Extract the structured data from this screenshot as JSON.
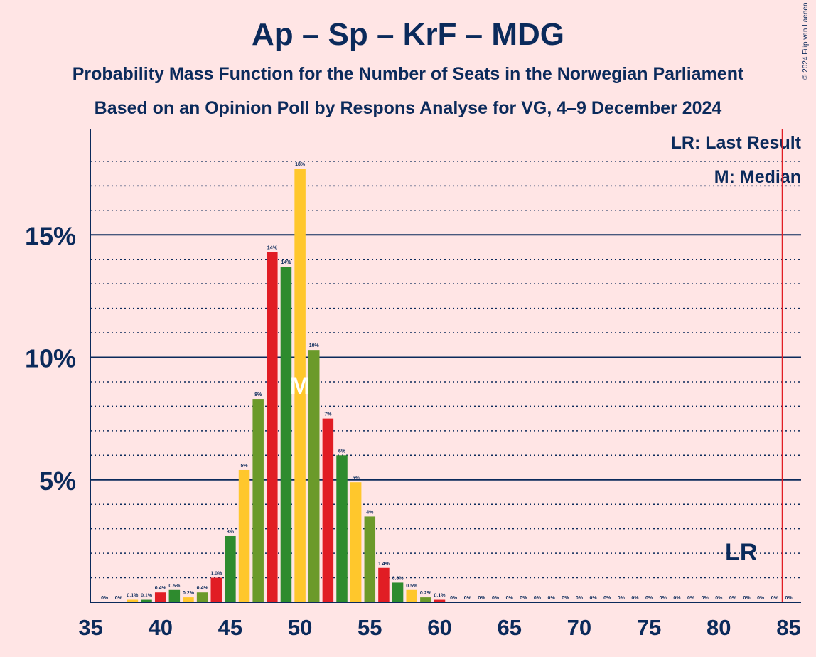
{
  "title": "Ap – Sp – KrF – MDG",
  "subtitle": "Probability Mass Function for the Number of Seats in the Norwegian Parliament",
  "subtitle2": "Based on an Opinion Poll by Respons Analyse for VG, 4–9 December 2024",
  "copyright": "© 2024 Filip van Laenen",
  "legend": {
    "lr": "LR: Last Result",
    "m": "M: Median"
  },
  "markers": {
    "median_label": "M",
    "median_seat": 50,
    "lr_label": "LR",
    "last_result_seat": 85
  },
  "colors": {
    "background": "#FFE5E5",
    "text": "#0B2A5B",
    "ap": "#E11D24",
    "sp": "#6B9A2A",
    "krf": "#FFC72C",
    "mdg": "#2E8B2E",
    "last_result_line": "#E11D24"
  },
  "chart_data": {
    "type": "bar",
    "xlabel": "",
    "ylabel": "",
    "x_ticks": [
      35,
      40,
      45,
      50,
      55,
      60,
      65,
      70,
      75,
      80,
      85
    ],
    "y_ticks": [
      {
        "value": 5,
        "label": "5%"
      },
      {
        "value": 10,
        "label": "10%"
      },
      {
        "value": 15,
        "label": "15%"
      }
    ],
    "xlim": [
      35,
      85
    ],
    "ylim": [
      0,
      19
    ],
    "seats": [
      36,
      37,
      38,
      39,
      40,
      41,
      42,
      43,
      44,
      45,
      46,
      47,
      48,
      49,
      50,
      51,
      52,
      53,
      54,
      55,
      56,
      57,
      58,
      59,
      60,
      61,
      62,
      63,
      64,
      65,
      66,
      67,
      68,
      69,
      70,
      71,
      72,
      73,
      74,
      75,
      76,
      77,
      78,
      79,
      80,
      81,
      82,
      83,
      84,
      85
    ],
    "values": [
      0,
      0,
      0.1,
      0.1,
      0.4,
      0.5,
      0.2,
      0.4,
      1.0,
      2.7,
      5.4,
      8.3,
      14.3,
      13.7,
      17.7,
      10.3,
      7.5,
      6.0,
      4.9,
      3.5,
      1.4,
      0.8,
      0.5,
      0.2,
      0.1,
      0,
      0,
      0,
      0,
      0,
      0,
      0,
      0,
      0,
      0,
      0,
      0,
      0,
      0,
      0,
      0,
      0,
      0,
      0,
      0,
      0,
      0,
      0,
      0,
      0
    ],
    "labels": [
      "0%",
      "0%",
      "0.1%",
      "0.1%",
      "0.4%",
      "0.5%",
      "0.2%",
      "0.4%",
      "1.0%",
      "3%",
      "5%",
      "8%",
      "14%",
      "14%",
      "18%",
      "10%",
      "7%",
      "6%",
      "5%",
      "4%",
      "1.4%",
      "0.8%",
      "0.5%",
      "0.2%",
      "0.1%",
      "0%",
      "0%",
      "0%",
      "0%",
      "0%",
      "0%",
      "0%",
      "0%",
      "0%",
      "0%",
      "0%",
      "0%",
      "0%",
      "0%",
      "0%",
      "0%",
      "0%",
      "0%",
      "0%",
      "0%",
      "0%",
      "0%",
      "0%",
      "0%",
      "0%"
    ],
    "colors": [
      "ap",
      "sp",
      "krf",
      "mdg",
      "ap",
      "mdg",
      "krf",
      "sp",
      "ap",
      "mdg",
      "krf",
      "sp",
      "ap",
      "mdg",
      "krf",
      "sp",
      "ap",
      "mdg",
      "krf",
      "sp",
      "ap",
      "mdg",
      "krf",
      "sp",
      "ap",
      "mdg",
      "krf",
      "sp",
      "ap",
      "mdg",
      "krf",
      "sp",
      "ap",
      "mdg",
      "krf",
      "sp",
      "ap",
      "mdg",
      "krf",
      "sp",
      "ap",
      "mdg",
      "krf",
      "sp",
      "ap",
      "mdg",
      "krf",
      "sp",
      "ap",
      "mdg"
    ]
  }
}
